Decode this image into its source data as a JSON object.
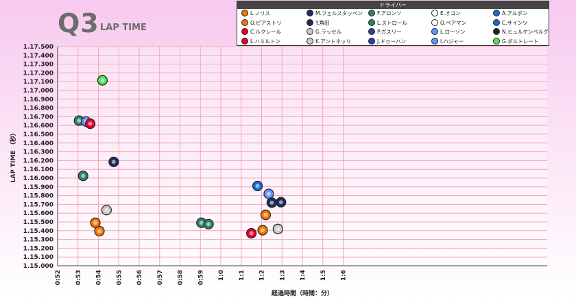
{
  "header": {
    "title": "Q3",
    "subtitle": "LAP TIME"
  },
  "legend": {
    "title": "ドライバー",
    "drivers": [
      {
        "name": "L.ノリス",
        "color": "#f47600",
        "icon": "mclaren-icon"
      },
      {
        "name": "M.フェルスタッペン",
        "color": "#1e2b5c",
        "icon": "redbull-icon"
      },
      {
        "name": "F.アロンソ",
        "color": "#2d826d",
        "icon": "astonmartin-icon"
      },
      {
        "name": "E.オコン",
        "color": "#ffffff",
        "icon": "haas-icon"
      },
      {
        "name": "A.アルボン",
        "color": "#1868db",
        "icon": "williams-icon"
      },
      {
        "name": "O.ピアストリ",
        "color": "#f47600",
        "icon": "mclaren-icon"
      },
      {
        "name": "Y.角田",
        "color": "#1e2b5c",
        "icon": "redbull-icon"
      },
      {
        "name": "L.ストロール",
        "color": "#2d826d",
        "icon": "astonmartin-icon"
      },
      {
        "name": "O.ベアマン",
        "color": "#ffffff",
        "icon": "haas-icon"
      },
      {
        "name": "C.サインツ",
        "color": "#1868db",
        "icon": "williams-icon"
      },
      {
        "name": "C.ルクレール",
        "color": "#e8002d",
        "icon": "ferrari-icon"
      },
      {
        "name": "G.ラッセル",
        "color": "#c8c8c8",
        "icon": "mercedes-icon"
      },
      {
        "name": "P.ガスリー",
        "color": "#2a3ea0",
        "icon": "alpine-icon"
      },
      {
        "name": "L.ローソン",
        "color": "#6692ff",
        "icon": "racingbulls-icon"
      },
      {
        "name": "N.ヒュルケンベルグ",
        "color": "#222222",
        "icon": "sauber-icon"
      },
      {
        "name": "L.ハミルトン",
        "color": "#e8002d",
        "icon": "ferrari-icon"
      },
      {
        "name": "K.アントネッリ",
        "color": "#c8c8c8",
        "icon": "mercedes-icon"
      },
      {
        "name": "J.ドゥーハン",
        "color": "#2a3ea0",
        "icon": "alpine-icon"
      },
      {
        "name": "I.ハジャー",
        "color": "#6692ff",
        "icon": "racingbulls-icon"
      },
      {
        "name": "G.ボルトレート",
        "color": "#52e252",
        "icon": "sauber-icon"
      }
    ]
  },
  "chart_data": {
    "type": "scatter",
    "xlabel": "経過時間（時間：分）",
    "ylabel": "LAP TIME （秒）",
    "xlim": [
      52,
      76
    ],
    "ylim": [
      1.15,
      1.175
    ],
    "xticks": [
      {
        "v": 52,
        "label": "0:52"
      },
      {
        "v": 53,
        "label": "0:53"
      },
      {
        "v": 54,
        "label": "0:54"
      },
      {
        "v": 55,
        "label": "0:55"
      },
      {
        "v": 56,
        "label": "0:56"
      },
      {
        "v": 57,
        "label": "0:57"
      },
      {
        "v": 58,
        "label": "0:58"
      },
      {
        "v": 59,
        "label": "0:59"
      },
      {
        "v": 60,
        "label": "1:0"
      },
      {
        "v": 61,
        "label": "1:1"
      },
      {
        "v": 62,
        "label": "1:2"
      },
      {
        "v": 63,
        "label": "1:3"
      },
      {
        "v": 64,
        "label": "1:4"
      },
      {
        "v": 65,
        "label": "1:5"
      },
      {
        "v": 66,
        "label": "1:6"
      }
    ],
    "yticks": [
      "1.15.000",
      "1.15.100",
      "1.15.200",
      "1.15.300",
      "1.15.400",
      "1.15.500",
      "1.15.600",
      "1.15.700",
      "1.15.800",
      "1.15.900",
      "1.16.000",
      "1.16.100",
      "1.16.200",
      "1.16.300",
      "1.16.400",
      "1.16.500",
      "1.16.600",
      "1.16.700",
      "1.16.800",
      "1.16.900",
      "1.17.000",
      "1.17.100",
      "1.17.200",
      "1.17.300",
      "1.17.400",
      "1.17.500"
    ],
    "points": [
      {
        "driver": "G.ボルトレート",
        "x": 54.2,
        "y": 1.17115,
        "color": "#52e252",
        "icon": "sauber-icon"
      },
      {
        "driver": "F.アロンソ",
        "x": 53.05,
        "y": 1.16655,
        "color": "#2d826d",
        "icon": "astonmartin-icon"
      },
      {
        "driver": "L.ローソン",
        "x": 53.4,
        "y": 1.16645,
        "color": "#6692ff",
        "icon": "racingbulls-icon"
      },
      {
        "driver": "C.ルクレール",
        "x": 53.6,
        "y": 1.1662,
        "color": "#e8002d",
        "icon": "ferrari-icon"
      },
      {
        "driver": "M.フェルスタッペン",
        "x": 54.75,
        "y": 1.16185,
        "color": "#1e2b5c",
        "icon": "redbull-icon"
      },
      {
        "driver": "L.ストロール",
        "x": 53.25,
        "y": 1.16025,
        "color": "#2d826d",
        "icon": "astonmartin-icon"
      },
      {
        "driver": "G.ラッセル",
        "x": 54.4,
        "y": 1.15635,
        "color": "#c8c8c8",
        "icon": "mercedes-icon"
      },
      {
        "driver": "O.ピアストリ",
        "x": 53.85,
        "y": 1.1549,
        "color": "#f47600",
        "icon": "mclaren-icon"
      },
      {
        "driver": "L.ノリス",
        "x": 54.05,
        "y": 1.15395,
        "color": "#f47600",
        "icon": "mclaren-icon"
      },
      {
        "driver": "F.アロンソ",
        "x": 59.05,
        "y": 1.1549,
        "color": "#2d826d",
        "icon": "astonmartin-icon"
      },
      {
        "driver": "L.ストロール",
        "x": 59.4,
        "y": 1.15475,
        "color": "#2d826d",
        "icon": "astonmartin-icon"
      },
      {
        "driver": "A.アルボン",
        "x": 61.8,
        "y": 1.1591,
        "color": "#1868db",
        "icon": "williams-icon"
      },
      {
        "driver": "I.ハジャー",
        "x": 62.35,
        "y": 1.1582,
        "color": "#6692ff",
        "icon": "racingbulls-icon"
      },
      {
        "driver": "Y.角田",
        "x": 62.5,
        "y": 1.1572,
        "color": "#1e2b5c",
        "icon": "redbull-icon"
      },
      {
        "driver": "M.フェルスタッペン",
        "x": 62.95,
        "y": 1.15725,
        "color": "#1e2b5c",
        "icon": "redbull-icon"
      },
      {
        "driver": "O.ピアストリ",
        "x": 62.2,
        "y": 1.1558,
        "color": "#f47600",
        "icon": "mclaren-icon"
      },
      {
        "driver": "K.アントネッリ",
        "x": 62.8,
        "y": 1.1542,
        "color": "#c8c8c8",
        "icon": "mercedes-icon"
      },
      {
        "driver": "L.ノリス",
        "x": 62.05,
        "y": 1.15405,
        "color": "#f47600",
        "icon": "mclaren-icon"
      },
      {
        "driver": "C.ルクレール",
        "x": 61.5,
        "y": 1.1537,
        "color": "#e8002d",
        "icon": "ferrari-icon"
      }
    ]
  }
}
